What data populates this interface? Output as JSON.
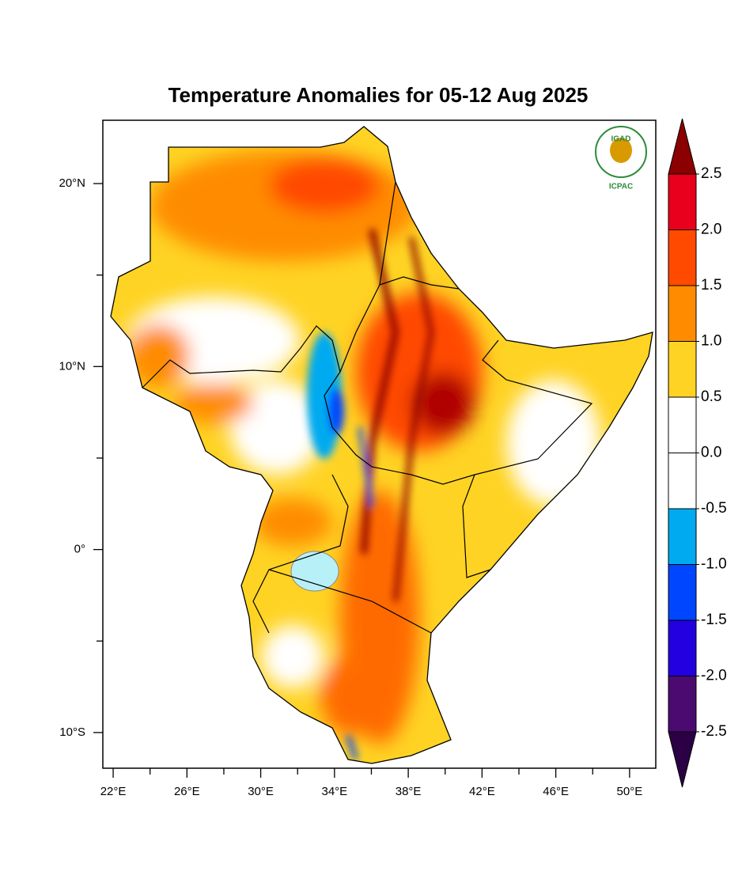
{
  "title": "Temperature Anomalies for 05-12 Aug 2025",
  "map": {
    "lonlim": [
      21.44,
      51.42
    ],
    "latlim": [
      -11.95,
      23.46
    ],
    "lon_ticks": [
      {
        "value": 22,
        "label": "22°E"
      },
      {
        "value": 26,
        "label": "26°E"
      },
      {
        "value": 30,
        "label": "30°E"
      },
      {
        "value": 34,
        "label": "34°E"
      },
      {
        "value": 38,
        "label": "38°E"
      },
      {
        "value": 42,
        "label": "42°E"
      },
      {
        "value": 46,
        "label": "46°E"
      },
      {
        "value": 50,
        "label": "50°E"
      }
    ],
    "lon_minor_ticks": [
      24,
      28,
      32,
      36,
      40,
      44,
      48
    ],
    "lat_ticks": [
      {
        "value": 20,
        "label": "20°N"
      },
      {
        "value": 10,
        "label": "10°N"
      },
      {
        "value": 0,
        "label": "0°"
      },
      {
        "value": -10,
        "label": "10°S"
      }
    ],
    "lat_minor_ticks": [
      15,
      5,
      -5
    ]
  },
  "colorbar": {
    "levels": [
      -2.5,
      {
        "value": -2,
        "label": "-2.0"
      },
      -1.5,
      {
        "value": -1,
        "label": "-1.0"
      },
      -0.5,
      {
        "value": 0,
        "label": "0.0"
      },
      0.5,
      {
        "value": 1,
        "label": "1.0"
      },
      1.5,
      {
        "value": 2,
        "label": "2.0"
      },
      2.5
    ],
    "colors": [
      "#2b0045",
      "#4b0a70",
      "#2200e0",
      "#0046ff",
      "#00aaf0",
      "#ffffff",
      "#ffffff",
      "#ffd323",
      "#ff8c00",
      "#ff4a00",
      "#e8001c",
      "#8b0000"
    ]
  },
  "logo": {
    "name": "IGAD",
    "org": "ICPAC"
  }
}
